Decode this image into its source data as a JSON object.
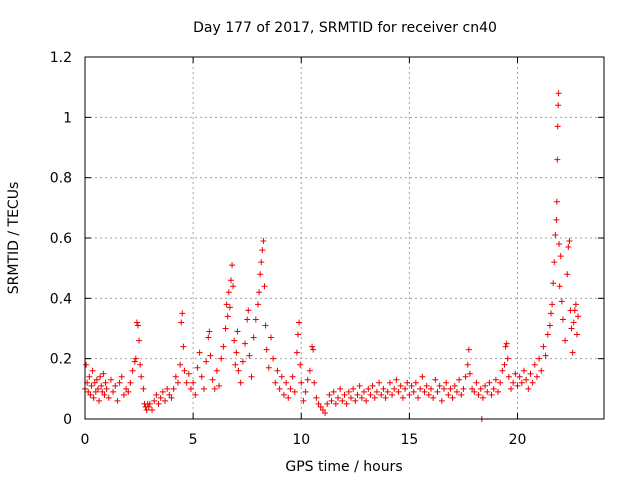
{
  "chart_data": {
    "type": "scatter",
    "title": "Day 177 of 2017, SRMTID for receiver cn40",
    "xlabel": "GPS time / hours",
    "ylabel": "SRMTID / TECUs",
    "xlim": [
      0,
      24
    ],
    "ylim": [
      0,
      1.2
    ],
    "xticks": [
      0,
      5,
      10,
      15,
      20
    ],
    "xtick_labels": [
      "0",
      "5",
      "10",
      "15",
      "20"
    ],
    "yticks": [
      0,
      0.2,
      0.4,
      0.6,
      0.8,
      1,
      1.2
    ],
    "ytick_labels": [
      "0",
      "0.2",
      "0.4",
      "0.6",
      "0.8",
      "1",
      "1.2"
    ],
    "grid": true,
    "marker": "+",
    "color": "#ee0000",
    "series": [
      {
        "name": "SRMTID",
        "points": [
          [
            0.0,
            0.1
          ],
          [
            0.05,
            0.18
          ],
          [
            0.1,
            0.12
          ],
          [
            0.15,
            0.09
          ],
          [
            0.2,
            0.14
          ],
          [
            0.25,
            0.08
          ],
          [
            0.3,
            0.11
          ],
          [
            0.35,
            0.16
          ],
          [
            0.4,
            0.07
          ],
          [
            0.45,
            0.12
          ],
          [
            0.5,
            0.09
          ],
          [
            0.55,
            0.13
          ],
          [
            0.6,
            0.1
          ],
          [
            0.65,
            0.06
          ],
          [
            0.7,
            0.14
          ],
          [
            0.75,
            0.11
          ],
          [
            0.8,
            0.09
          ],
          [
            0.85,
            0.15
          ],
          [
            0.9,
            0.08
          ],
          [
            0.95,
            0.12
          ],
          [
            1.0,
            0.1
          ],
          [
            1.1,
            0.07
          ],
          [
            1.2,
            0.13
          ],
          [
            1.3,
            0.09
          ],
          [
            1.4,
            0.11
          ],
          [
            1.5,
            0.06
          ],
          [
            1.6,
            0.12
          ],
          [
            1.7,
            0.14
          ],
          [
            1.8,
            0.08
          ],
          [
            1.9,
            0.1
          ],
          [
            2.0,
            0.09
          ],
          [
            2.1,
            0.12
          ],
          [
            2.2,
            0.16
          ],
          [
            2.3,
            0.19
          ],
          [
            2.35,
            0.2
          ],
          [
            2.4,
            0.32
          ],
          [
            2.45,
            0.31
          ],
          [
            2.5,
            0.26
          ],
          [
            2.55,
            0.18
          ],
          [
            2.6,
            0.14
          ],
          [
            2.7,
            0.1
          ],
          [
            2.75,
            0.05
          ],
          [
            2.8,
            0.04
          ],
          [
            2.85,
            0.03
          ],
          [
            2.9,
            0.05
          ],
          [
            2.95,
            0.04
          ],
          [
            3.0,
            0.05
          ],
          [
            3.1,
            0.03
          ],
          [
            3.2,
            0.06
          ],
          [
            3.3,
            0.08
          ],
          [
            3.4,
            0.05
          ],
          [
            3.5,
            0.07
          ],
          [
            3.6,
            0.09
          ],
          [
            3.7,
            0.06
          ],
          [
            3.8,
            0.1
          ],
          [
            3.9,
            0.08
          ],
          [
            4.0,
            0.07
          ],
          [
            4.1,
            0.1
          ],
          [
            4.2,
            0.14
          ],
          [
            4.3,
            0.12
          ],
          [
            4.4,
            0.18
          ],
          [
            4.45,
            0.32
          ],
          [
            4.5,
            0.35
          ],
          [
            4.55,
            0.24
          ],
          [
            4.6,
            0.16
          ],
          [
            4.7,
            0.12
          ],
          [
            4.8,
            0.15
          ],
          [
            4.9,
            0.1
          ],
          [
            5.0,
            0.12
          ],
          [
            5.1,
            0.08
          ],
          [
            5.2,
            0.17
          ],
          [
            5.3,
            0.22
          ],
          [
            5.4,
            0.14
          ],
          [
            5.5,
            0.1
          ],
          [
            5.6,
            0.19
          ],
          [
            5.7,
            0.27
          ],
          [
            5.75,
            0.29
          ],
          [
            5.8,
            0.21
          ],
          [
            5.9,
            0.13
          ],
          [
            6.0,
            0.1
          ],
          [
            6.1,
            0.16
          ],
          [
            6.2,
            0.11
          ],
          [
            6.3,
            0.2
          ],
          [
            6.4,
            0.24
          ],
          [
            6.5,
            0.3
          ],
          [
            6.55,
            0.38
          ],
          [
            6.6,
            0.34
          ],
          [
            6.65,
            0.42
          ],
          [
            6.7,
            0.37
          ],
          [
            6.75,
            0.46
          ],
          [
            6.8,
            0.51
          ],
          [
            6.85,
            0.44
          ],
          [
            6.9,
            0.26
          ],
          [
            6.95,
            0.18
          ],
          [
            7.0,
            0.22
          ],
          [
            7.05,
            0.29
          ],
          [
            7.1,
            0.16
          ],
          [
            7.2,
            0.12
          ],
          [
            7.3,
            0.19
          ],
          [
            7.4,
            0.25
          ],
          [
            7.5,
            0.33
          ],
          [
            7.55,
            0.36
          ],
          [
            7.6,
            0.21
          ],
          [
            7.7,
            0.14
          ],
          [
            7.8,
            0.27
          ],
          [
            7.9,
            0.33
          ],
          [
            8.0,
            0.38
          ],
          [
            8.05,
            0.42
          ],
          [
            8.1,
            0.48
          ],
          [
            8.15,
            0.52
          ],
          [
            8.2,
            0.56
          ],
          [
            8.25,
            0.59
          ],
          [
            8.3,
            0.44
          ],
          [
            8.35,
            0.31
          ],
          [
            8.4,
            0.23
          ],
          [
            8.5,
            0.17
          ],
          [
            8.6,
            0.27
          ],
          [
            8.7,
            0.2
          ],
          [
            8.8,
            0.12
          ],
          [
            8.9,
            0.16
          ],
          [
            9.0,
            0.1
          ],
          [
            9.1,
            0.14
          ],
          [
            9.2,
            0.08
          ],
          [
            9.3,
            0.12
          ],
          [
            9.4,
            0.07
          ],
          [
            9.5,
            0.1
          ],
          [
            9.6,
            0.14
          ],
          [
            9.7,
            0.09
          ],
          [
            9.8,
            0.22
          ],
          [
            9.85,
            0.28
          ],
          [
            9.9,
            0.32
          ],
          [
            9.95,
            0.18
          ],
          [
            10.0,
            0.12
          ],
          [
            10.1,
            0.06
          ],
          [
            10.2,
            0.09
          ],
          [
            10.3,
            0.13
          ],
          [
            10.4,
            0.16
          ],
          [
            10.5,
            0.24
          ],
          [
            10.55,
            0.23
          ],
          [
            10.6,
            0.12
          ],
          [
            10.7,
            0.07
          ],
          [
            10.8,
            0.05
          ],
          [
            10.9,
            0.04
          ],
          [
            11.0,
            0.03
          ],
          [
            11.1,
            0.02
          ],
          [
            11.2,
            0.05
          ],
          [
            11.3,
            0.08
          ],
          [
            11.4,
            0.06
          ],
          [
            11.5,
            0.09
          ],
          [
            11.6,
            0.05
          ],
          [
            11.7,
            0.07
          ],
          [
            11.8,
            0.1
          ],
          [
            11.9,
            0.06
          ],
          [
            12.0,
            0.08
          ],
          [
            12.1,
            0.05
          ],
          [
            12.2,
            0.09
          ],
          [
            12.3,
            0.07
          ],
          [
            12.4,
            0.1
          ],
          [
            12.5,
            0.06
          ],
          [
            12.6,
            0.08
          ],
          [
            12.7,
            0.11
          ],
          [
            12.8,
            0.07
          ],
          [
            12.9,
            0.09
          ],
          [
            13.0,
            0.06
          ],
          [
            13.1,
            0.1
          ],
          [
            13.2,
            0.08
          ],
          [
            13.3,
            0.11
          ],
          [
            13.4,
            0.07
          ],
          [
            13.5,
            0.09
          ],
          [
            13.6,
            0.12
          ],
          [
            13.7,
            0.08
          ],
          [
            13.8,
            0.1
          ],
          [
            13.9,
            0.07
          ],
          [
            14.0,
            0.09
          ],
          [
            14.1,
            0.12
          ],
          [
            14.2,
            0.08
          ],
          [
            14.3,
            0.1
          ],
          [
            14.4,
            0.13
          ],
          [
            14.5,
            0.09
          ],
          [
            14.6,
            0.11
          ],
          [
            14.7,
            0.07
          ],
          [
            14.8,
            0.1
          ],
          [
            14.9,
            0.12
          ],
          [
            15.0,
            0.08
          ],
          [
            15.1,
            0.11
          ],
          [
            15.2,
            0.09
          ],
          [
            15.3,
            0.12
          ],
          [
            15.4,
            0.07
          ],
          [
            15.5,
            0.1
          ],
          [
            15.6,
            0.14
          ],
          [
            15.7,
            0.09
          ],
          [
            15.8,
            0.11
          ],
          [
            15.9,
            0.08
          ],
          [
            16.0,
            0.1
          ],
          [
            16.1,
            0.07
          ],
          [
            16.2,
            0.13
          ],
          [
            16.3,
            0.09
          ],
          [
            16.4,
            0.11
          ],
          [
            16.5,
            0.06
          ],
          [
            16.6,
            0.1
          ],
          [
            16.7,
            0.12
          ],
          [
            16.8,
            0.08
          ],
          [
            16.9,
            0.1
          ],
          [
            17.0,
            0.07
          ],
          [
            17.1,
            0.11
          ],
          [
            17.2,
            0.09
          ],
          [
            17.3,
            0.13
          ],
          [
            17.4,
            0.08
          ],
          [
            17.5,
            0.1
          ],
          [
            17.6,
            0.14
          ],
          [
            17.7,
            0.18
          ],
          [
            17.75,
            0.23
          ],
          [
            17.8,
            0.15
          ],
          [
            17.9,
            0.1
          ],
          [
            18.0,
            0.09
          ],
          [
            18.1,
            0.12
          ],
          [
            18.2,
            0.08
          ],
          [
            18.3,
            0.1
          ],
          [
            18.35,
            0.0
          ],
          [
            18.4,
            0.07
          ],
          [
            18.5,
            0.11
          ],
          [
            18.6,
            0.09
          ],
          [
            18.7,
            0.12
          ],
          [
            18.8,
            0.08
          ],
          [
            18.9,
            0.1
          ],
          [
            19.0,
            0.13
          ],
          [
            19.1,
            0.09
          ],
          [
            19.2,
            0.12
          ],
          [
            19.3,
            0.16
          ],
          [
            19.4,
            0.18
          ],
          [
            19.45,
            0.24
          ],
          [
            19.5,
            0.25
          ],
          [
            19.55,
            0.2
          ],
          [
            19.6,
            0.14
          ],
          [
            19.7,
            0.1
          ],
          [
            19.8,
            0.12
          ],
          [
            19.9,
            0.15
          ],
          [
            20.0,
            0.11
          ],
          [
            20.1,
            0.14
          ],
          [
            20.2,
            0.12
          ],
          [
            20.3,
            0.16
          ],
          [
            20.4,
            0.13
          ],
          [
            20.5,
            0.1
          ],
          [
            20.6,
            0.15
          ],
          [
            20.7,
            0.12
          ],
          [
            20.8,
            0.18
          ],
          [
            20.9,
            0.14
          ],
          [
            21.0,
            0.2
          ],
          [
            21.1,
            0.16
          ],
          [
            21.2,
            0.24
          ],
          [
            21.3,
            0.21
          ],
          [
            21.4,
            0.28
          ],
          [
            21.5,
            0.31
          ],
          [
            21.55,
            0.35
          ],
          [
            21.6,
            0.38
          ],
          [
            21.65,
            0.45
          ],
          [
            21.7,
            0.52
          ],
          [
            21.75,
            0.61
          ],
          [
            21.8,
            0.66
          ],
          [
            21.82,
            0.72
          ],
          [
            21.84,
            0.86
          ],
          [
            21.86,
            0.97
          ],
          [
            21.88,
            1.04
          ],
          [
            21.9,
            1.08
          ],
          [
            21.92,
            0.58
          ],
          [
            21.95,
            0.44
          ],
          [
            22.0,
            0.54
          ],
          [
            22.05,
            0.39
          ],
          [
            22.1,
            0.33
          ],
          [
            22.2,
            0.26
          ],
          [
            22.3,
            0.48
          ],
          [
            22.35,
            0.57
          ],
          [
            22.4,
            0.59
          ],
          [
            22.45,
            0.36
          ],
          [
            22.5,
            0.3
          ],
          [
            22.55,
            0.22
          ],
          [
            22.6,
            0.32
          ],
          [
            22.65,
            0.36
          ],
          [
            22.7,
            0.38
          ],
          [
            22.75,
            0.28
          ],
          [
            22.8,
            0.34
          ]
        ]
      }
    ]
  }
}
